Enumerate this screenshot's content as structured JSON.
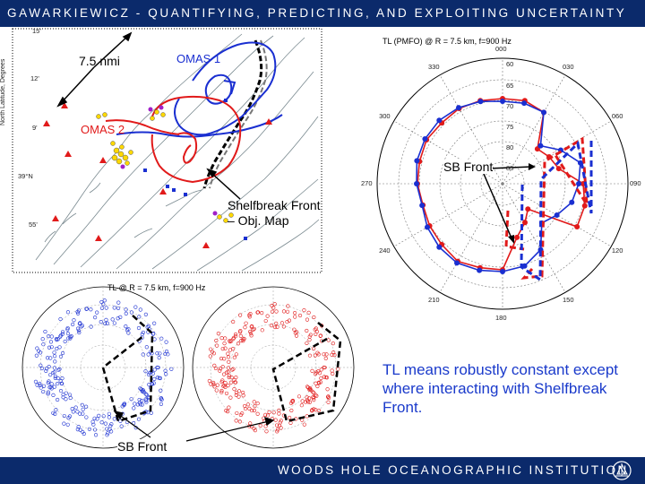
{
  "header": {
    "title": "GAWARKIEWICZ - QUANTIFYING, PREDICTING, AND EXPLOITING UNCERTAINTY"
  },
  "footer": {
    "institution": "WOODS HOLE OCEANOGRAPHIC INSTITUTION"
  },
  "map": {
    "label_scale": "7.5 nmi",
    "label_omas1": "OMAS 1",
    "label_omas2": "OMAS 2",
    "label_front": "Shelfbreak Front – Obj. Map",
    "ylabel": "North Latitude, Degrees",
    "lat_ticks": [
      "15'",
      "12'",
      "9'",
      "39°N",
      "55'"
    ],
    "colors": {
      "omas1": "#1a2fd1",
      "omas2": "#e11a1a"
    }
  },
  "polar_main": {
    "title": "TL (PMFO) @ R = 7.5 km, f=900 Hz",
    "front_label": "SB Front",
    "angle_ticks": [
      "000",
      "030",
      "060",
      "090",
      "120",
      "150",
      "180",
      "210",
      "240",
      "270",
      "300",
      "330"
    ],
    "radial_ticks": [
      "60",
      "65",
      "70",
      "75",
      "80",
      "85"
    ]
  },
  "polar_bottom": {
    "title": "TL @ R = 7.5 km, f=900 Hz",
    "front_label": "SB Front"
  },
  "caption": "TL means robustly constant except where interacting with Shelfbreak Front."
}
